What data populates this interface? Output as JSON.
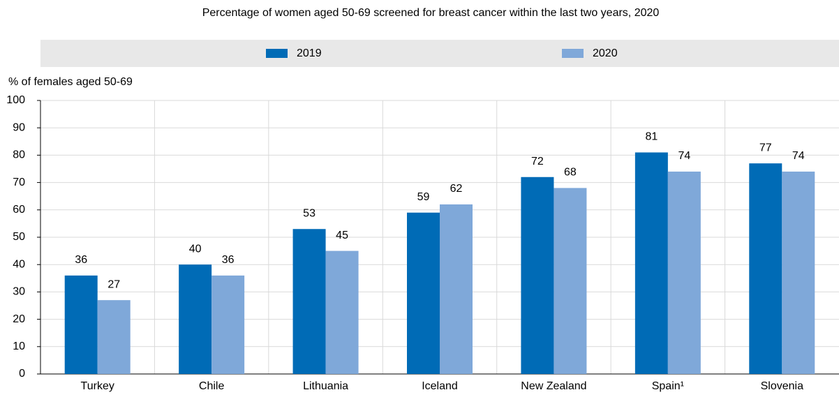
{
  "chart_data": {
    "type": "bar",
    "subtitle": "Percentage of women aged 50-69 screened for breast cancer within the last two years, 2020",
    "y_label": "% of females aged 50-69",
    "categories": [
      "Turkey",
      "Chile",
      "Lithuania",
      "Iceland",
      "New Zealand",
      "Spain¹",
      "Slovenia"
    ],
    "series": [
      {
        "name": "2019",
        "color": "#006bb6",
        "values": [
          36,
          40,
          53,
          59,
          72,
          81,
          77
        ]
      },
      {
        "name": "2020",
        "color": "#7fa8d9",
        "values": [
          27,
          36,
          45,
          62,
          68,
          74,
          74
        ]
      }
    ],
    "ylim": [
      0,
      100
    ],
    "yticks": [
      0,
      10,
      20,
      30,
      40,
      50,
      60,
      70,
      80,
      90,
      100
    ],
    "grid": true
  }
}
